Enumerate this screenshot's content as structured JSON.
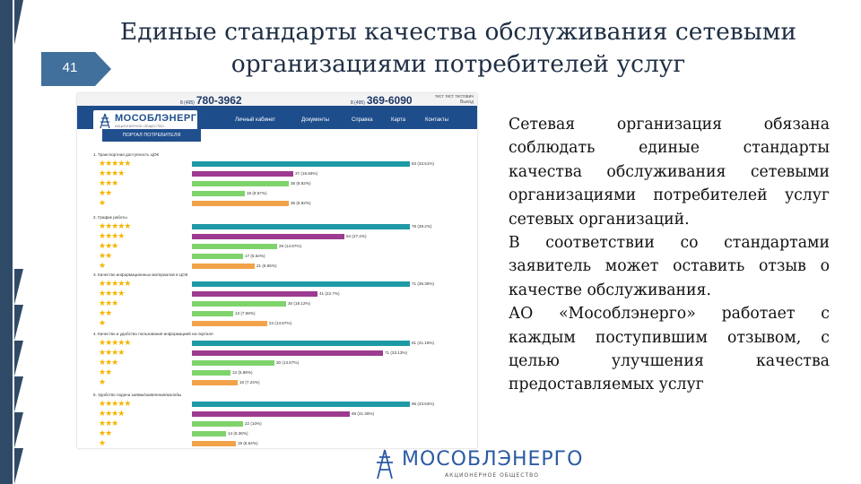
{
  "slide": {
    "number": "41",
    "title_line1": "Единые стандарты качества обслуживания сетевыми",
    "title_line2": "организациями потребителей услуг"
  },
  "screenshot": {
    "phone1_prefix": "8 (495)",
    "phone1": "780-3962",
    "phone2_prefix": "8 (495)",
    "phone2": "369-6090",
    "user_line1": "тест тест тестович",
    "user_line2": "Выход",
    "logo_text": "МОСОБЛЭНЕРГО",
    "logo_sub": "АКЦИОНЕРНОЕ ОБЩЕСТВО",
    "nav": [
      "Личный кабинет",
      "Документы",
      "Справка",
      "Карта",
      "Контакты"
    ],
    "portal_label": "ПОРТАЛ ПОТРЕБИТЕЛЯ",
    "colors": {
      "teal": "#1e9aa6",
      "purple": "#9c3b8f",
      "green": "#7fd36b",
      "orange": "#f2a34a",
      "star": "#f5b400"
    },
    "sections": [
      {
        "label": "1. Транспортная доступность ЦОК",
        "values": [
          "83 (33.51%)",
          "37 (16.66%)",
          "35 (8.82%)",
          "18 (9.57%)",
          "35 (8.82%)"
        ],
        "fractions": [
          0.9,
          0.42,
          0.4,
          0.22,
          0.4
        ]
      },
      {
        "label": "2. График работы",
        "values": [
          "78 (39.2%)",
          "54 (27.4%)",
          "29 (14.97%)",
          "17 (5.54%)",
          "21 (6.55%)"
        ],
        "fractions": [
          0.9,
          0.63,
          0.35,
          0.21,
          0.26
        ]
      },
      {
        "label": "3. Качество информационных материалов в ЦОК",
        "values": [
          "71 (35.36%)",
          "41 (22.7%)",
          "30 (18.12%)",
          "13 (7.69%)",
          "24 (13.87%)"
        ],
        "fractions": [
          0.9,
          0.52,
          0.39,
          0.17,
          0.31
        ]
      },
      {
        "label": "4. Качество и удобство пользования информацией на портале",
        "values": [
          "81 (41.16%)",
          "71 (33.13%)",
          "30 (13.57%)",
          "13 (5.88%)",
          "16 (7.24%)"
        ],
        "fractions": [
          0.9,
          0.79,
          0.34,
          0.16,
          0.19
        ]
      },
      {
        "label": "5. Удобство подачи заявки/заявления/жалобы",
        "values": [
          "96 (43.64%)",
          "69 (31.36%)",
          "22 (10%)",
          "14 (6.36%)",
          "19 (8.64%)"
        ],
        "fractions": [
          0.9,
          0.65,
          0.21,
          0.14,
          0.18
        ]
      }
    ]
  },
  "body": {
    "paragraph1": "Сетевая организация обязана соблюдать единые стандарты качества обслуживания сетевыми организациями потребителей услуг сетевых организаций.",
    "paragraph2": "В соответствии со стандартами заявитель может оставить отзыв о качестве обслуживания.",
    "paragraph3": "АО «Мособлэнерго» работает с каждым поступившим отзывом, с целью улучшения качества предоставляемых услуг"
  },
  "footer": {
    "logo_text": "МОСОБЛЭНЕРГО",
    "logo_sub": "АКЦИОНЕРНОЕ ОБЩЕСТВО"
  }
}
